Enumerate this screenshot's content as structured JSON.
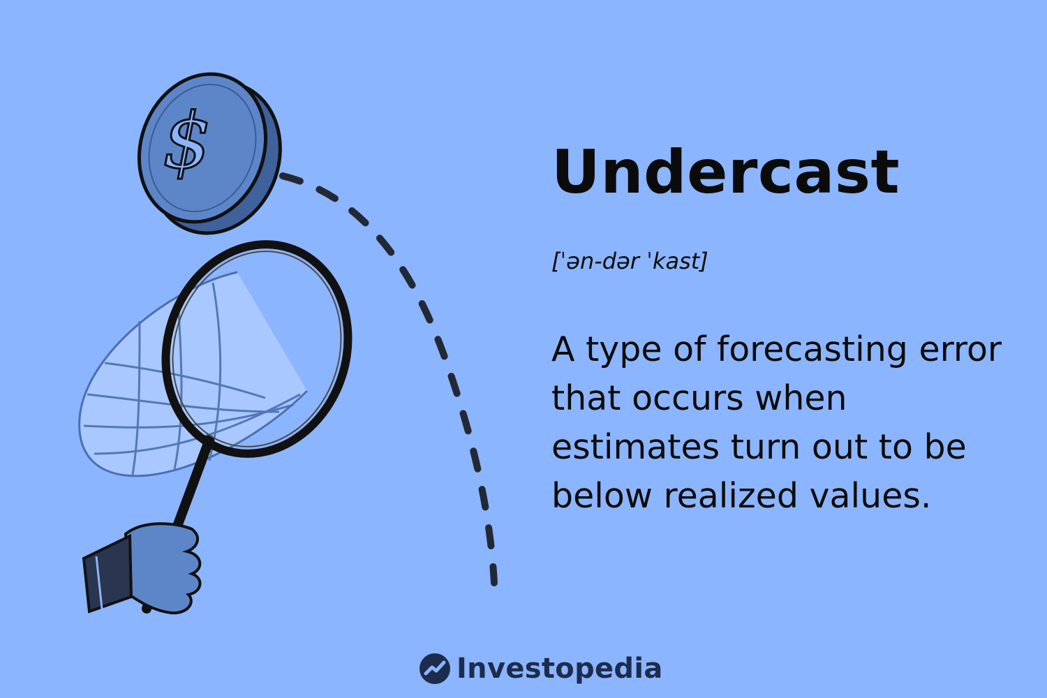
{
  "card": {
    "term": "Undercast",
    "pronunciation": "[ˈən-dər ˈkast]",
    "definition_lines": [
      "A type of forecasting error",
      "that occurs when",
      "estimates turn out to be",
      "below realized values."
    ]
  },
  "brand": {
    "name": "Investopedia"
  },
  "illustration": {
    "coin_symbol": "$",
    "colors": {
      "background": "#8cb5ff",
      "coin_face": "#5d86c9",
      "coin_edge": "#3f629d",
      "net": "#a9c8ff",
      "outline": "#111111",
      "sleeve": "#2a3550"
    }
  }
}
